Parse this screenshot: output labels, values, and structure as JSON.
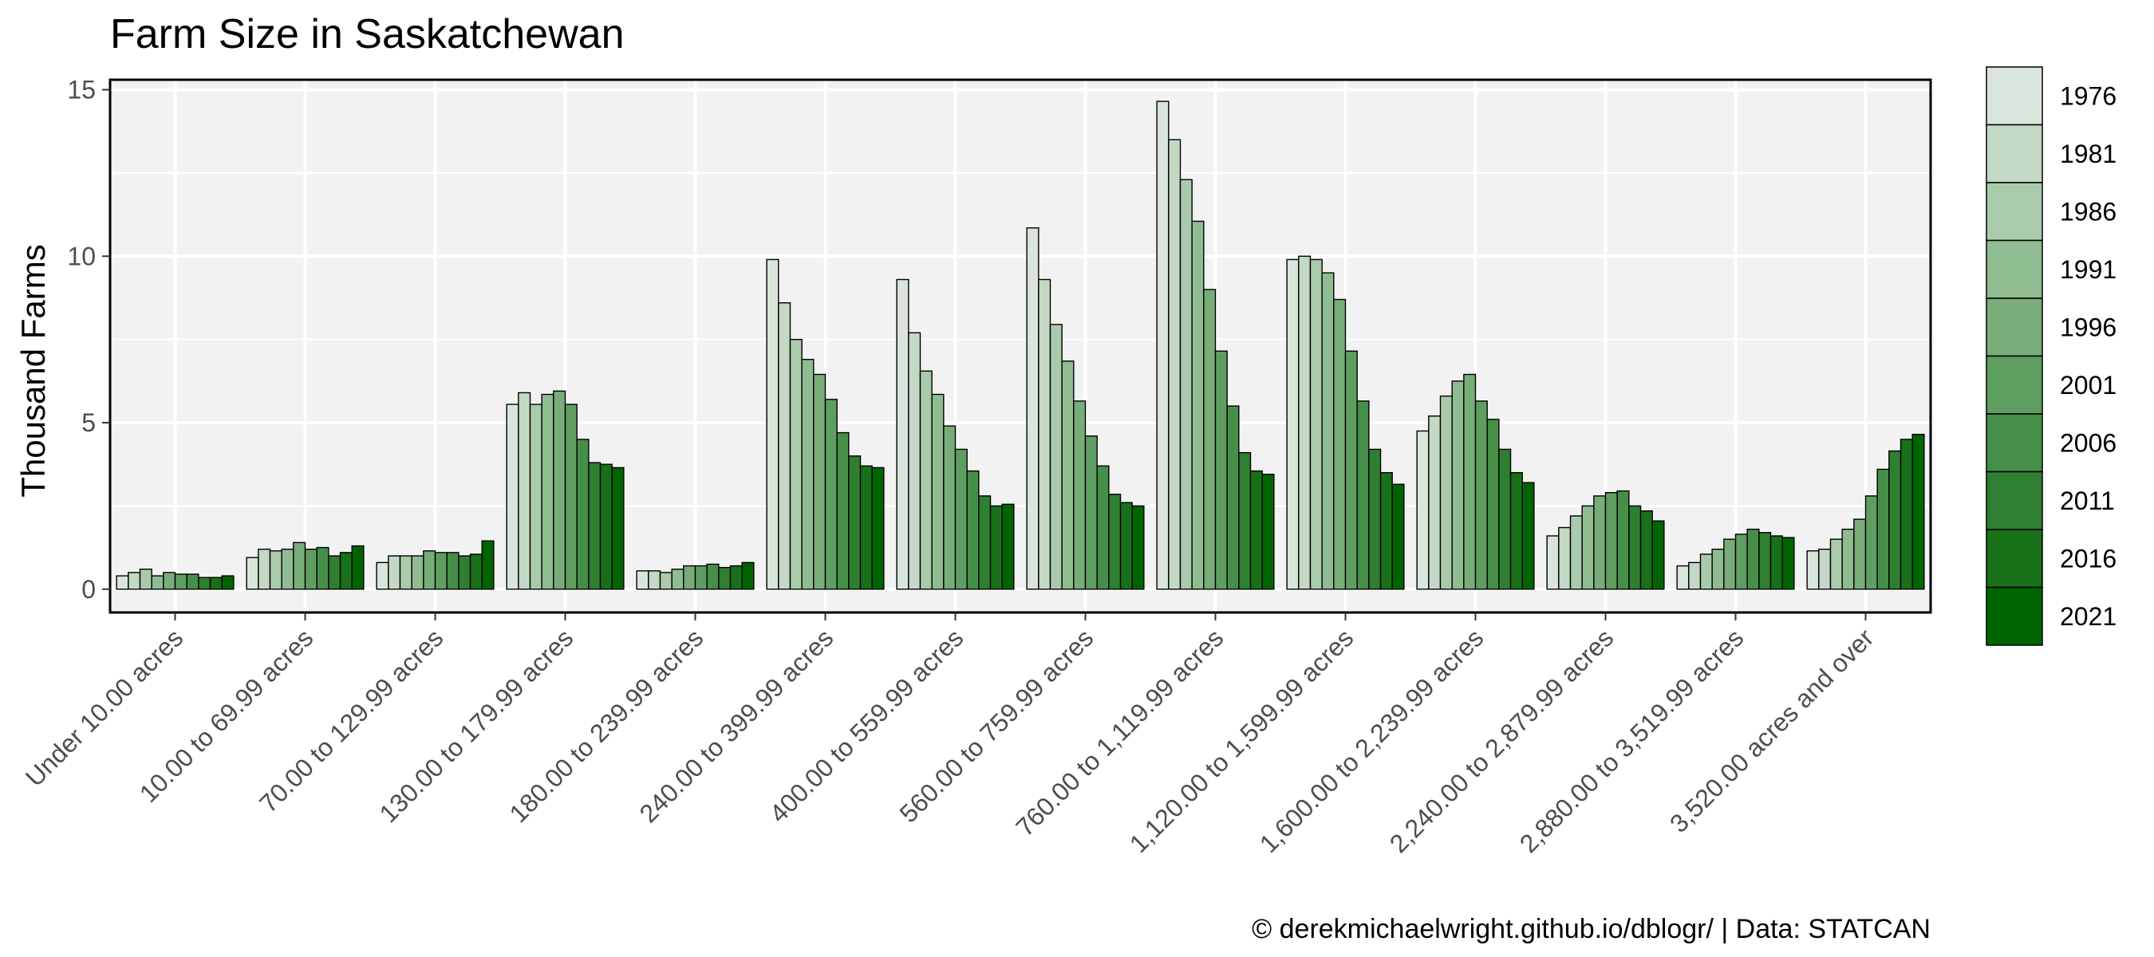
{
  "chart_data": {
    "type": "bar",
    "title": "Farm Size in Saskatchewan",
    "xlabel": "",
    "ylabel": "Thousand Farms",
    "ylim": [
      -0.7,
      15.3
    ],
    "yticks": [
      0,
      5,
      10,
      15
    ],
    "grid": true,
    "legend_position": "right",
    "caption": "© derekmichaelwright.github.io/dblogr/ | Data: STATCAN",
    "categories": [
      "Under 10.00 acres",
      "10.00 to 69.99 acres",
      "70.00 to 129.99 acres",
      "130.00 to 179.99 acres",
      "180.00 to 239.99 acres",
      "240.00 to 399.99 acres",
      "400.00 to 559.99 acres",
      "560.00 to 759.99 acres",
      "760.00 to 1,119.99 acres",
      "1,120.00 to 1,599.99 acres",
      "1,600.00 to 2,239.99 acres",
      "2,240.00 to 2,879.99 acres",
      "2,880.00 to 3,519.99 acres",
      "3,520.00 acres and over"
    ],
    "series": [
      {
        "name": "1976",
        "color": "#d9e5da",
        "values": [
          0.4,
          0.95,
          0.8,
          5.55,
          0.55,
          9.9,
          9.3,
          10.85,
          14.65,
          9.9,
          4.75,
          1.6,
          0.7,
          1.15
        ]
      },
      {
        "name": "1981",
        "color": "#c4d9c5",
        "values": [
          0.5,
          1.2,
          1.0,
          5.9,
          0.55,
          8.6,
          7.7,
          9.3,
          13.5,
          10.0,
          5.2,
          1.85,
          0.8,
          1.2
        ]
      },
      {
        "name": "1986",
        "color": "#aacbab",
        "values": [
          0.6,
          1.15,
          1.0,
          5.55,
          0.5,
          7.5,
          6.55,
          7.95,
          12.3,
          9.9,
          5.8,
          2.2,
          1.05,
          1.5
        ]
      },
      {
        "name": "1991",
        "color": "#90bc92",
        "values": [
          0.4,
          1.2,
          1.0,
          5.85,
          0.6,
          6.9,
          5.85,
          6.85,
          11.05,
          9.5,
          6.25,
          2.5,
          1.2,
          1.8
        ]
      },
      {
        "name": "1996",
        "color": "#78ad79",
        "values": [
          0.5,
          1.4,
          1.15,
          5.95,
          0.7,
          6.45,
          4.9,
          5.65,
          9.0,
          8.7,
          6.45,
          2.8,
          1.5,
          2.1
        ]
      },
      {
        "name": "2001",
        "color": "#5f9e61",
        "values": [
          0.45,
          1.2,
          1.1,
          5.55,
          0.7,
          5.7,
          4.2,
          4.6,
          7.15,
          7.15,
          5.65,
          2.9,
          1.65,
          2.8
        ]
      },
      {
        "name": "2006",
        "color": "#468f48",
        "values": [
          0.45,
          1.25,
          1.1,
          4.5,
          0.75,
          4.7,
          3.55,
          3.7,
          5.5,
          5.65,
          5.1,
          2.95,
          1.8,
          3.6
        ]
      },
      {
        "name": "2011",
        "color": "#2f7f30",
        "values": [
          0.35,
          1.0,
          1.0,
          3.8,
          0.65,
          4.0,
          2.8,
          2.85,
          4.1,
          4.2,
          4.2,
          2.5,
          1.7,
          4.15
        ]
      },
      {
        "name": "2016",
        "color": "#187018",
        "values": [
          0.35,
          1.1,
          1.05,
          3.75,
          0.7,
          3.7,
          2.5,
          2.6,
          3.55,
          3.5,
          3.5,
          2.35,
          1.6,
          4.5
        ]
      },
      {
        "name": "2021",
        "color": "#006400",
        "values": [
          0.4,
          1.3,
          1.45,
          3.65,
          0.8,
          3.65,
          2.55,
          2.5,
          3.45,
          3.15,
          3.2,
          2.05,
          1.55,
          4.65
        ]
      }
    ]
  }
}
